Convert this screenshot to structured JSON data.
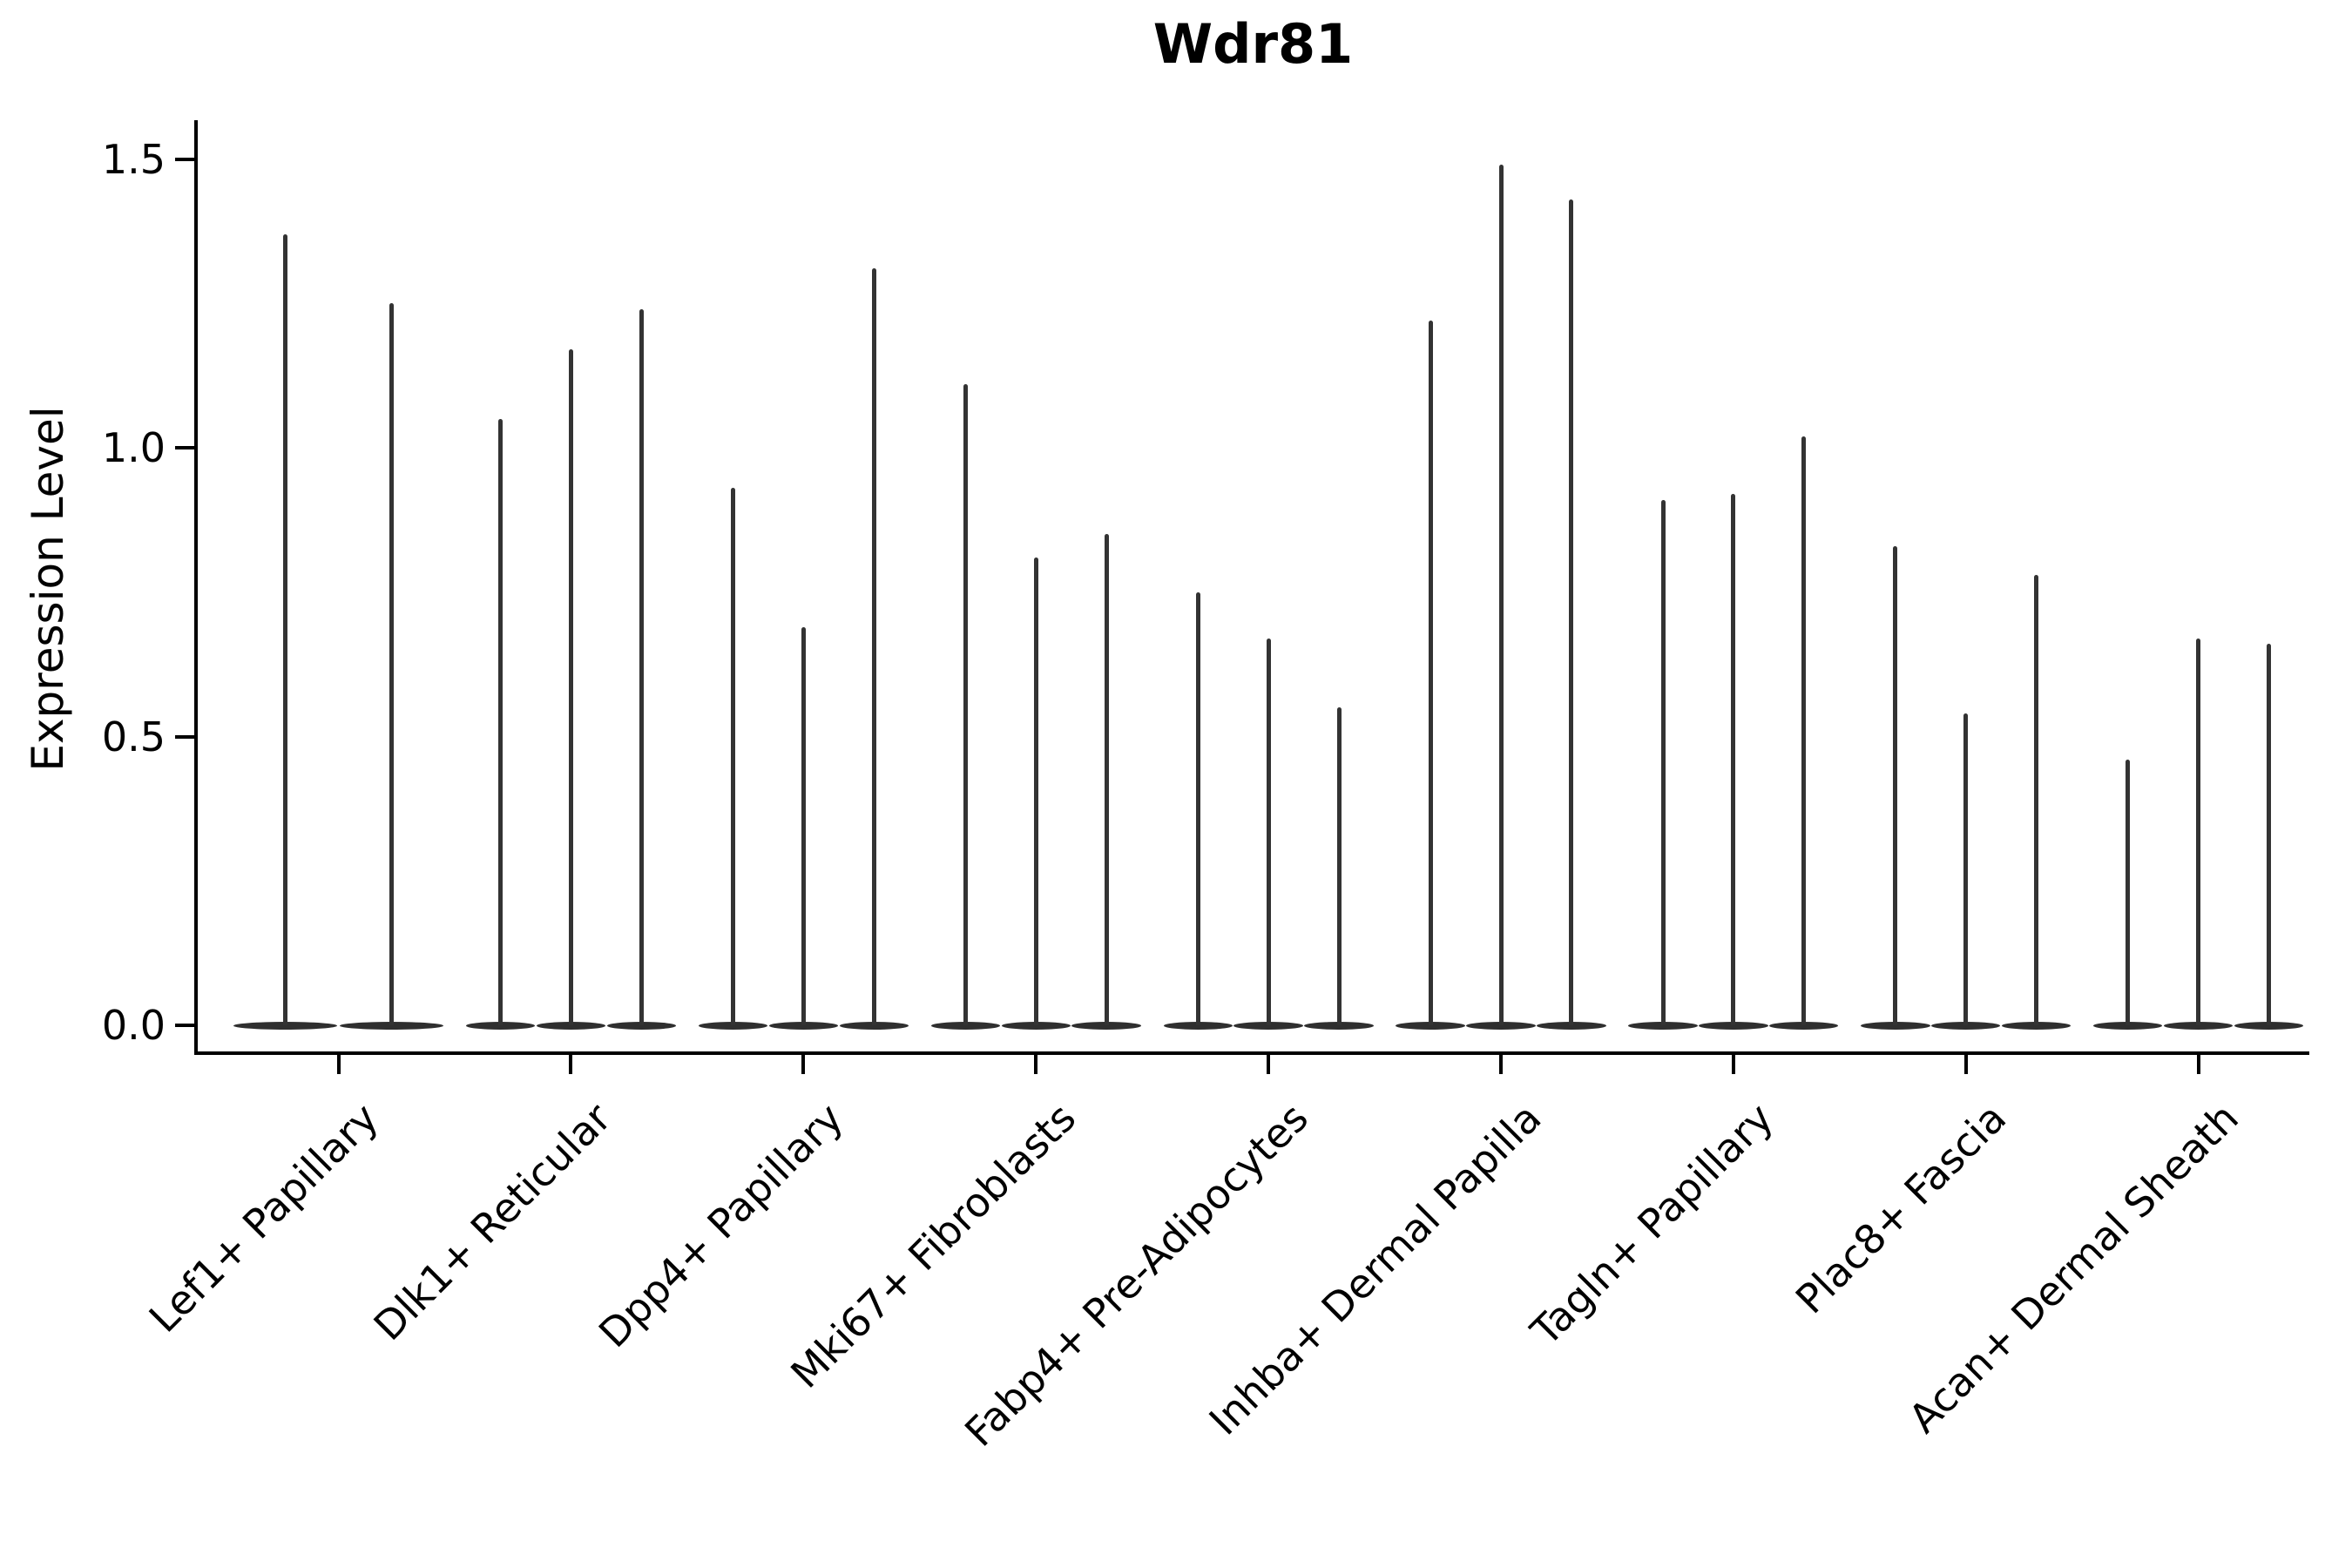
{
  "title": "Wdr81",
  "chart_data": {
    "type": "violin",
    "title": "Wdr81",
    "xlabel": "",
    "ylabel": "Expression Level",
    "ylim": [
      0,
      1.55
    ],
    "yticks": [
      0,
      0.5,
      1.0,
      1.5
    ],
    "ytick_labels": [
      "0.0",
      "0.5",
      "1.0",
      "1.5"
    ],
    "grid": false,
    "legend": "none",
    "violin_color": "#333333",
    "categories": [
      "Lef1+ Papillary",
      "Dlk1+ Reticular",
      "Dpp4+ Papillary",
      "Mki67+ Fibroblasts",
      "Fabp4+ Pre-Adipocytes",
      "Inhba+ Dermal Papilla",
      "Tagln+ Papillary",
      "Plac8+ Fascia",
      "Acan+ Dermal Sheath"
    ],
    "series": [
      {
        "category": "Lef1+ Papillary",
        "violin_max_values": [
          1.37,
          1.25
        ]
      },
      {
        "category": "Dlk1+ Reticular",
        "violin_max_values": [
          1.05,
          1.17,
          1.24
        ]
      },
      {
        "category": "Dpp4+ Papillary",
        "violin_max_values": [
          0.93,
          0.69,
          1.31
        ]
      },
      {
        "category": "Mki67+ Fibroblasts",
        "violin_max_values": [
          1.11,
          0.81,
          0.85
        ]
      },
      {
        "category": "Fabp4+ Pre-Adipocytes",
        "violin_max_values": [
          0.75,
          0.67,
          0.55
        ]
      },
      {
        "category": "Inhba+ Dermal Papilla",
        "violin_max_values": [
          1.22,
          1.49,
          1.43
        ]
      },
      {
        "category": "Tagln+ Papillary",
        "violin_max_values": [
          0.91,
          0.92,
          1.02
        ]
      },
      {
        "category": "Plac8+ Fascia",
        "violin_max_values": [
          0.83,
          0.54,
          0.78
        ]
      },
      {
        "category": "Acan+ Dermal Sheath",
        "violin_max_values": [
          0.46,
          0.67,
          0.66
        ]
      }
    ],
    "violins_note": "each violin collapses to a flat mass at 0 with a thin spike up to its max expression value"
  }
}
